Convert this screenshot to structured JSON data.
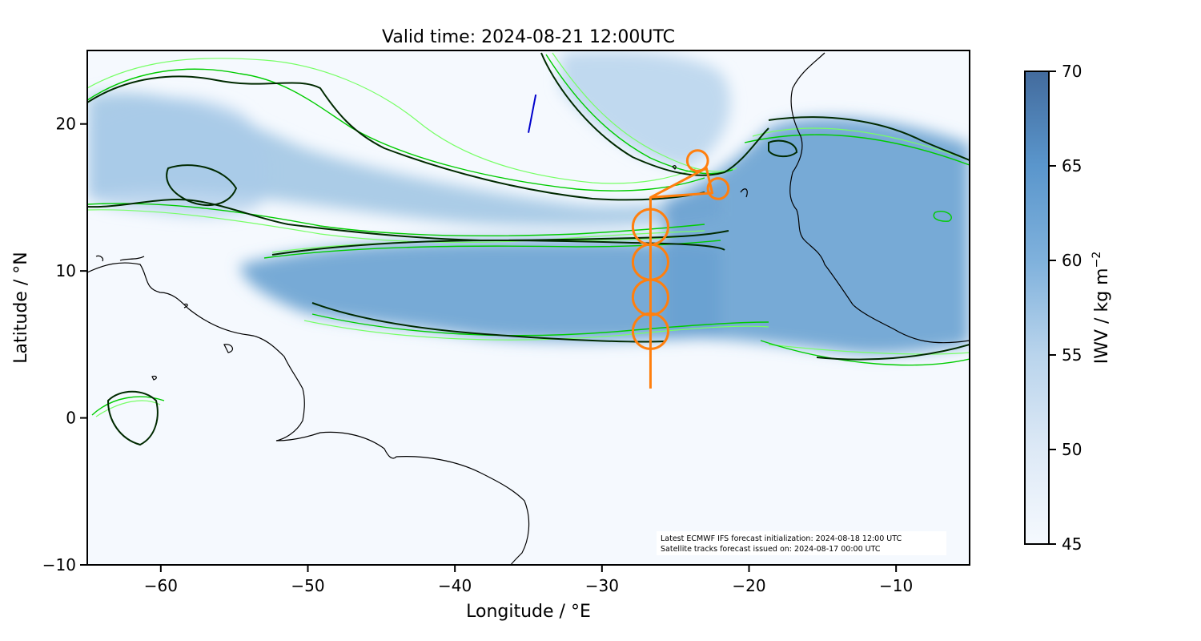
{
  "title": "Valid time: 2024-08-21 12:00UTC",
  "axes": {
    "xlabel": "Longitude / °E",
    "ylabel": "Latitude / °N",
    "xlim": [
      -65,
      -5
    ],
    "ylim": [
      -10,
      25
    ],
    "xticks": [
      {
        "value": -60,
        "label": "−60"
      },
      {
        "value": -50,
        "label": "−50"
      },
      {
        "value": -40,
        "label": "−40"
      },
      {
        "value": -30,
        "label": "−30"
      },
      {
        "value": -20,
        "label": "−20"
      },
      {
        "value": -10,
        "label": "−10"
      }
    ],
    "yticks": [
      {
        "value": -10,
        "label": "−10"
      },
      {
        "value": 0,
        "label": "0"
      },
      {
        "value": 10,
        "label": "10"
      },
      {
        "value": 20,
        "label": "20"
      }
    ]
  },
  "colorbar": {
    "label": "IWV / kg m",
    "label_exponent": "−2",
    "range": [
      45,
      70
    ],
    "ticks": [
      {
        "value": 45,
        "label": "45"
      },
      {
        "value": 50,
        "label": "50"
      },
      {
        "value": 55,
        "label": "55"
      },
      {
        "value": 60,
        "label": "60"
      },
      {
        "value": 65,
        "label": "65"
      },
      {
        "value": 70,
        "label": "70"
      }
    ],
    "color_low": "#f5f9fe",
    "color_high": "#436b9d"
  },
  "annotation": {
    "line1": "Latest ECMWF IFS forecast initialization: 2024-08-18 12:00 UTC",
    "line2": "Satellite tracks forecast issued on: 2024-08-17 00:00 UTC"
  },
  "colors": {
    "flight_track": "#ff7f0e",
    "satellite_track": "#0000cc",
    "contour_dark": "#003300",
    "contour_green": "#00cc00",
    "contour_lightgreen": "#77ff66",
    "coastline": "#000000"
  },
  "chart_data": {
    "type": "map",
    "flight_track": {
      "path": [
        [
          -26.7,
          2
        ],
        [
          -26.7,
          15.0
        ],
        [
          -22.9,
          17.0
        ],
        [
          -22.5,
          15.3
        ],
        [
          -26.7,
          15.0
        ]
      ],
      "circles": [
        {
          "lon": -26.7,
          "lat": 13.0,
          "radius_deg": 1.2
        },
        {
          "lon": -26.7,
          "lat": 10.6,
          "radius_deg": 1.2
        },
        {
          "lon": -26.7,
          "lat": 8.2,
          "radius_deg": 1.2
        },
        {
          "lon": -26.7,
          "lat": 5.9,
          "radius_deg": 1.2
        },
        {
          "lon": -23.5,
          "lat": 17.5,
          "radius_deg": 0.7
        },
        {
          "lon": -22.1,
          "lat": 15.6,
          "radius_deg": 0.7
        }
      ]
    },
    "satellite_track": [
      [
        -34.5,
        22.0
      ],
      [
        -35.0,
        19.4
      ]
    ],
    "iwv_range": [
      45,
      70
    ]
  }
}
